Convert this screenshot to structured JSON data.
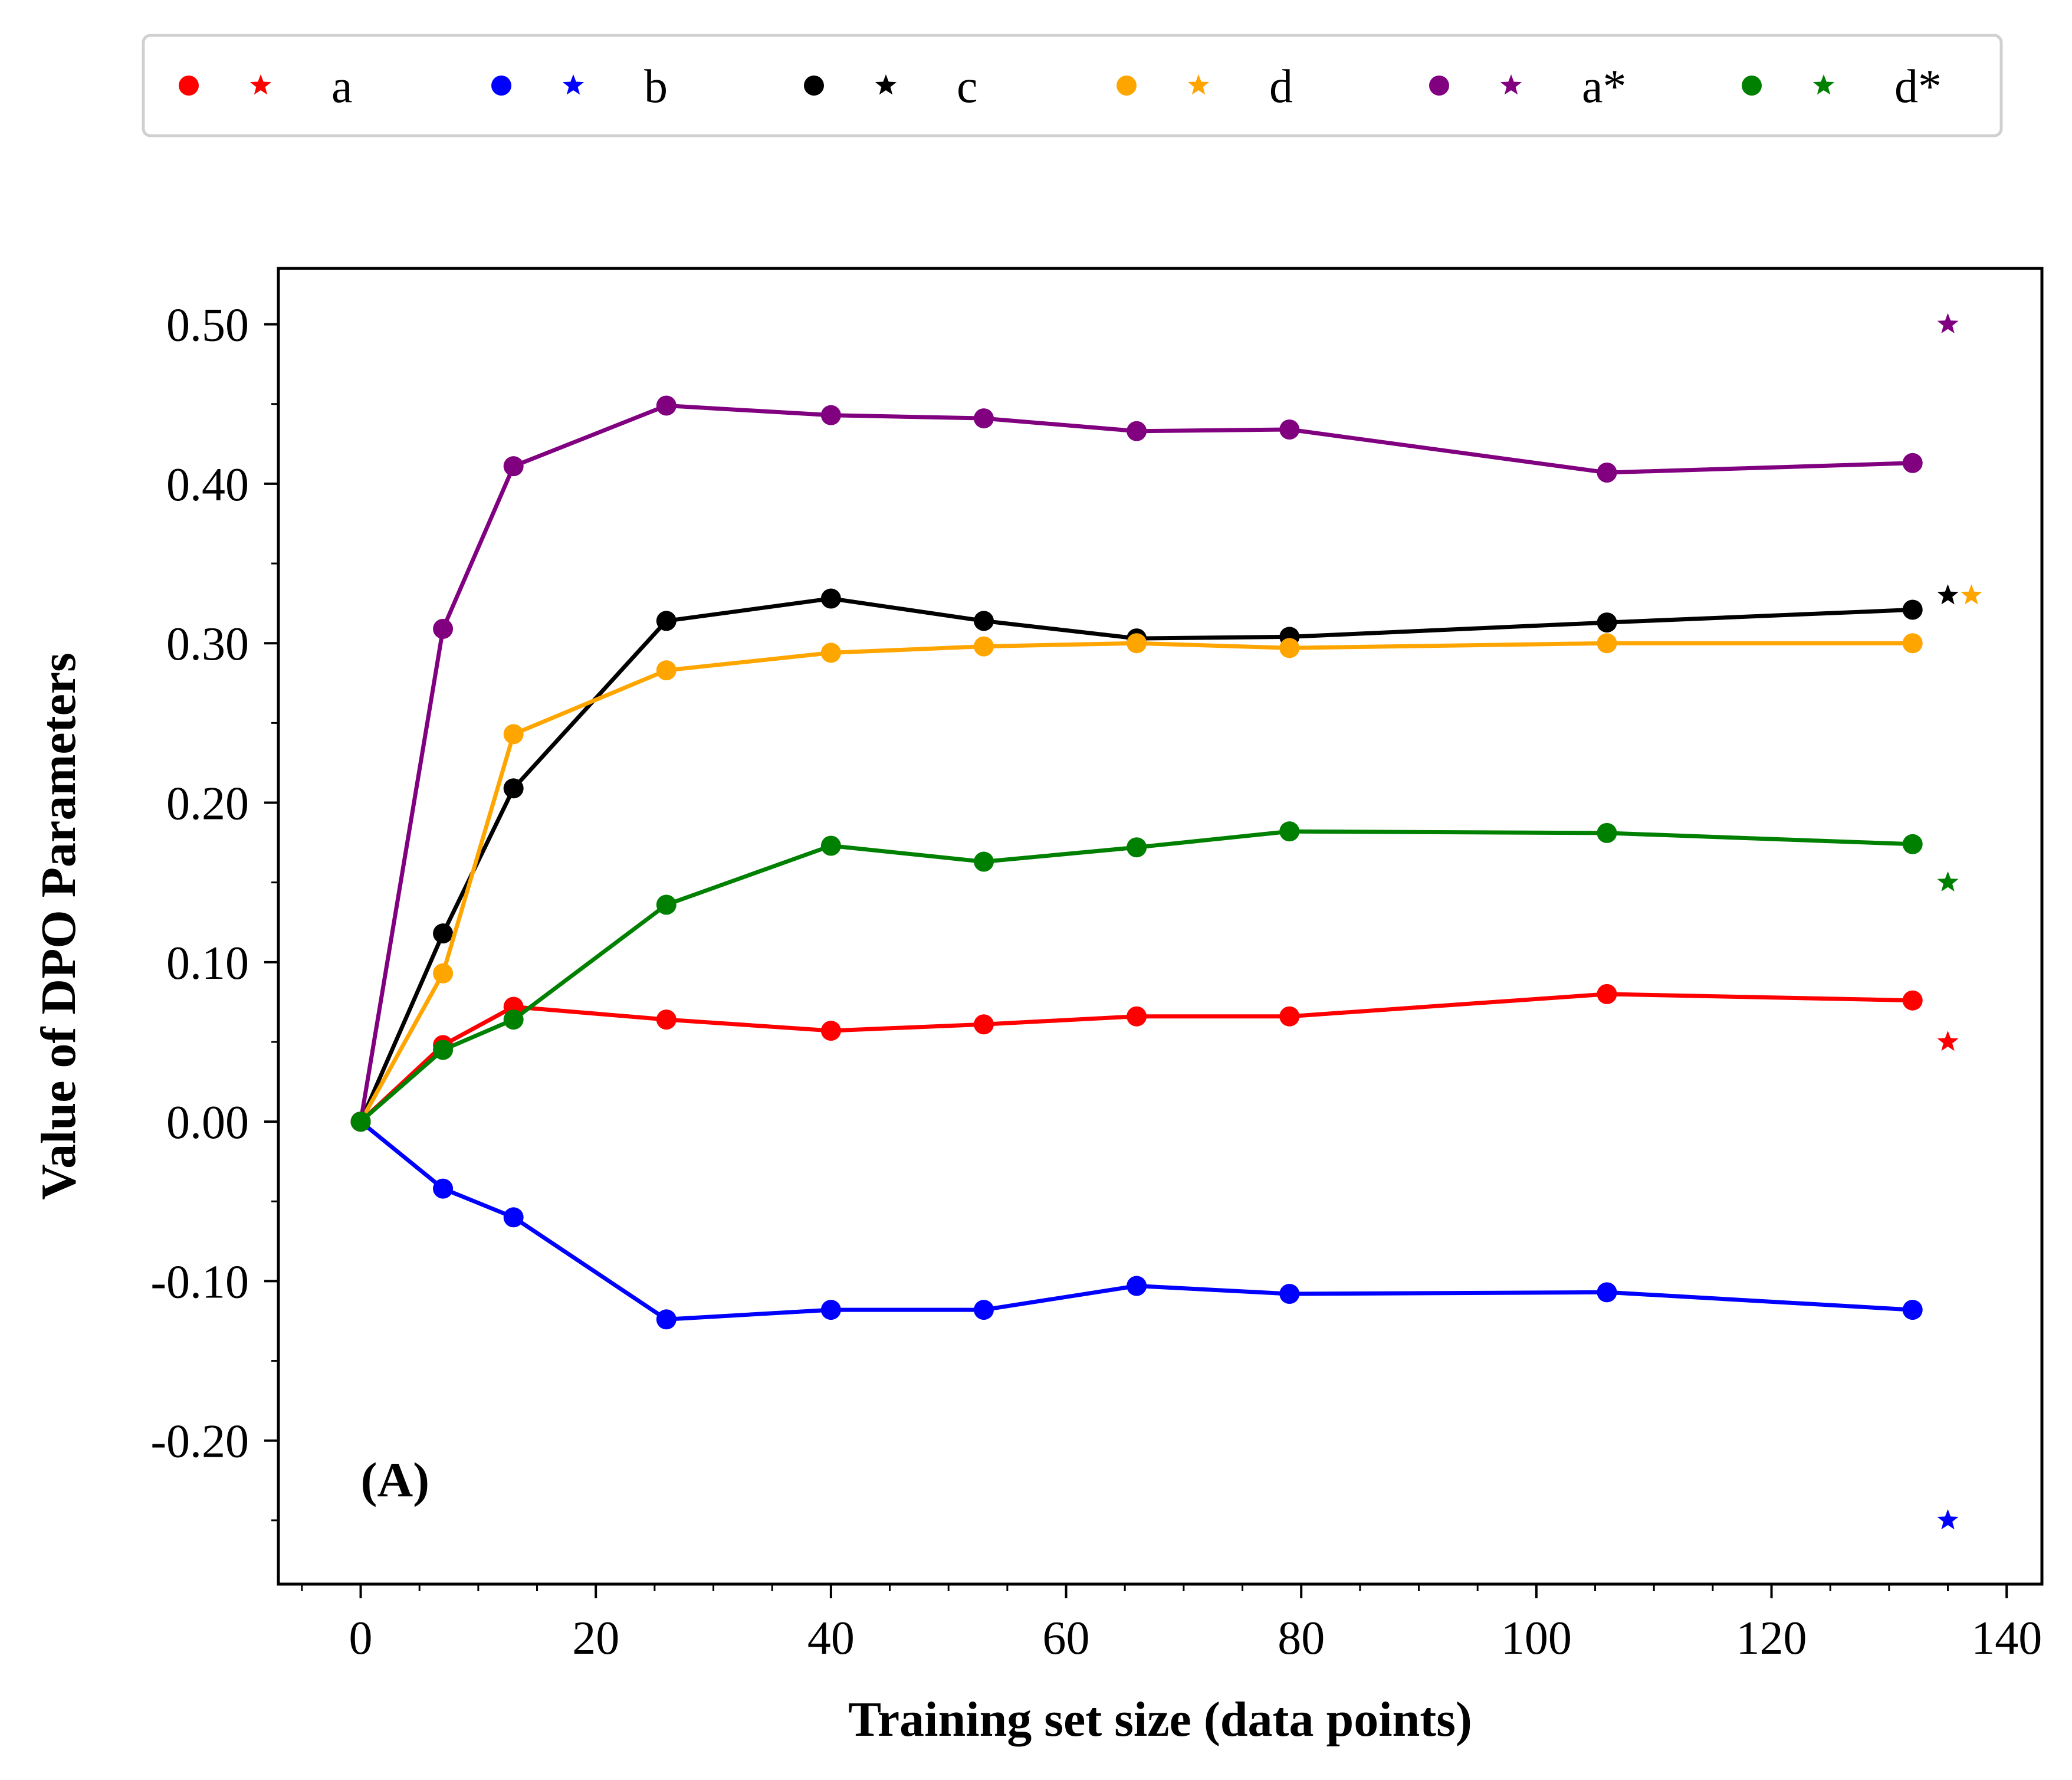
{
  "chart_data": {
    "type": "line",
    "xlabel": "Training set size (data points)",
    "ylabel": "Value of DPO Parameters",
    "annotation": "(A)",
    "xlim": [
      -7,
      143
    ],
    "ylim": [
      -0.29,
      0.535
    ],
    "xticks": [
      0,
      20,
      40,
      60,
      80,
      100,
      120,
      140
    ],
    "xtick_labels": [
      "0",
      "20",
      "40",
      "60",
      "80",
      "100",
      "120",
      "140"
    ],
    "yticks": [
      -0.2,
      -0.1,
      0.0,
      0.1,
      0.2,
      0.3,
      0.4,
      0.5
    ],
    "ytick_labels": [
      "-0.20",
      "-0.10",
      "0.00",
      "0.10",
      "0.20",
      "0.30",
      "0.40",
      "0.50"
    ],
    "grid": false,
    "legend_position": "top, outside plot, single row",
    "x": [
      0,
      7,
      13,
      26,
      40,
      53,
      66,
      79,
      106,
      132
    ],
    "series": [
      {
        "name": "a",
        "color": "#ff0000",
        "values": [
          0.0,
          0.048,
          0.072,
          0.064,
          0.057,
          0.061,
          0.066,
          0.066,
          0.08,
          0.076
        ],
        "star": {
          "x": 135,
          "y": 0.05
        }
      },
      {
        "name": "b",
        "color": "#0000ff",
        "values": [
          0.0,
          -0.042,
          -0.06,
          -0.124,
          -0.118,
          -0.118,
          -0.103,
          -0.108,
          -0.107,
          -0.118
        ],
        "star": {
          "x": 135,
          "y": -0.25
        }
      },
      {
        "name": "c",
        "color": "#000000",
        "values": [
          0.0,
          0.118,
          0.209,
          0.314,
          0.328,
          0.314,
          0.303,
          0.304,
          0.313,
          0.321
        ],
        "star": {
          "x": 135,
          "y": 0.33
        }
      },
      {
        "name": "d",
        "color": "#ffa500",
        "values": [
          0.0,
          0.093,
          0.243,
          0.283,
          0.294,
          0.298,
          0.3,
          0.297,
          0.3,
          0.3
        ],
        "star": {
          "x": 137,
          "y": 0.33
        }
      },
      {
        "name": "a*",
        "color": "#800080",
        "values": [
          0.0,
          0.309,
          0.411,
          0.449,
          0.443,
          0.441,
          0.433,
          0.434,
          0.407,
          0.413
        ],
        "star": {
          "x": 135,
          "y": 0.5
        }
      },
      {
        "name": "d*",
        "color": "#008000",
        "values": [
          0.0,
          0.045,
          0.064,
          0.136,
          0.173,
          0.163,
          0.172,
          0.182,
          0.181,
          0.174
        ],
        "star": {
          "x": 135,
          "y": 0.15
        }
      }
    ]
  }
}
